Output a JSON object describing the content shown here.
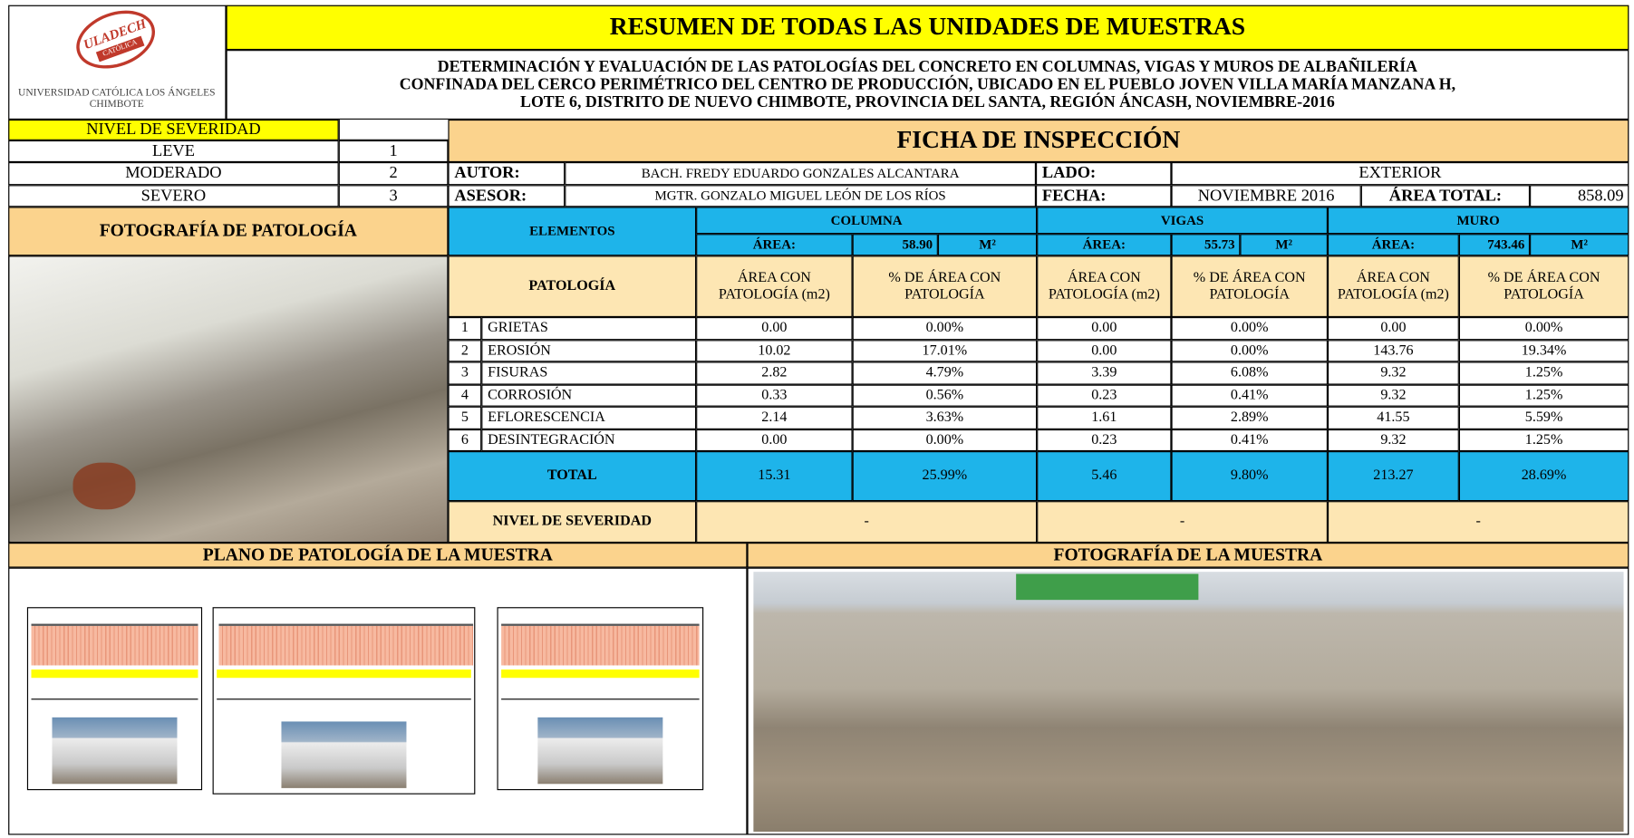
{
  "header": {
    "logo_text": "ULADECH",
    "logo_subtext": "CATÓLICA",
    "university": "UNIVERSIDAD CATÓLICA LOS ÁNGELES CHIMBOTE",
    "title": "RESUMEN DE TODAS LAS UNIDADES DE MUESTRAS",
    "subtitle": [
      "DETERMINACIÓN Y EVALUACIÓN DE LAS PATOLOGÍAS DEL CONCRETO EN COLUMNAS, VIGAS Y MUROS DE ALBAÑILERÍA",
      "CONFINADA DEL CERCO PERIMÉTRICO DEL CENTRO DE PRODUCCIÓN, UBICADO EN EL PUEBLO JOVEN VILLA MARÍA MANZANA H,",
      "LOTE 6, DISTRITO DE NUEVO CHIMBOTE, PROVINCIA DEL SANTA, REGIÓN ÁNCASH, NOVIEMBRE-2016"
    ]
  },
  "severity_legend": {
    "title": "NIVEL DE SEVERIDAD",
    "rows": [
      [
        "LEVE",
        1
      ],
      [
        "MODERADO",
        2
      ],
      [
        "SEVERO",
        3
      ]
    ]
  },
  "form": {
    "title": "FICHA DE INSPECCIÓN",
    "author_label": "AUTOR:",
    "author": "BACH. FREDY EDUARDO GONZALES ALCANTARA",
    "side_label": "LADO:",
    "side": "EXTERIOR",
    "advisor_label": "ASESOR:",
    "advisor": "MGTR. GONZALO MIGUEL LEÓN DE LOS RÍOS",
    "date_label": "FECHA:",
    "date": "NOVIEMBRE 2016",
    "total_area_label": "ÁREA TOTAL:",
    "total_area": "858.09"
  },
  "photo_title": "FOTOGRAFÍA DE PATOLOGÍA",
  "table": {
    "elements_label": "ELEMENTOS",
    "pathology_label": "PATOLOGÍA",
    "groups": [
      {
        "name": "COLUMNA",
        "area_label": "ÁREA:",
        "area": "58.90",
        "unit": "M²",
        "sub_headers": [
          "ÁREA CON PATOLOGÍA (m2)",
          "% DE ÁREA CON PATOLOGÍA"
        ]
      },
      {
        "name": "VIGAS",
        "area_label": "ÁREA:",
        "area": "55.73",
        "unit": "M²",
        "sub_headers": [
          "ÁREA CON PATOLOGÍA (m2)",
          "% DE ÁREA CON PATOLOGÍA"
        ]
      },
      {
        "name": "MURO",
        "area_label": "ÁREA:",
        "area": "743.46",
        "unit": "M²",
        "sub_headers": [
          "ÁREA CON PATOLOGÍA (m2)",
          "% DE ÁREA CON PATOLOGÍA"
        ]
      }
    ],
    "rows": [
      {
        "number": 1,
        "name": "GRIETAS",
        "cells": [
          "0.00",
          "0.00%",
          "0.00",
          "0.00%",
          "0.00",
          "0.00%"
        ]
      },
      {
        "number": 2,
        "name": "EROSIÓN",
        "cells": [
          "10.02",
          "17.01%",
          "0.00",
          "0.00%",
          "143.76",
          "19.34%"
        ]
      },
      {
        "number": 3,
        "name": "FISURAS",
        "cells": [
          "2.82",
          "4.79%",
          "3.39",
          "6.08%",
          "9.32",
          "1.25%"
        ]
      },
      {
        "number": 4,
        "name": "CORROSIÓN",
        "cells": [
          "0.33",
          "0.56%",
          "0.23",
          "0.41%",
          "9.32",
          "1.25%"
        ]
      },
      {
        "number": 5,
        "name": "EFLORESCENCIA",
        "cells": [
          "2.14",
          "3.63%",
          "1.61",
          "2.89%",
          "41.55",
          "5.59%"
        ]
      },
      {
        "number": 6,
        "name": "DESINTEGRACIÓN",
        "cells": [
          "0.00",
          "0.00%",
          "0.23",
          "0.41%",
          "9.32",
          "1.25%"
        ]
      }
    ],
    "total": {
      "label": "TOTAL",
      "cells": [
        "15.31",
        "25.99%",
        "5.46",
        "9.80%",
        "213.27",
        "28.69%"
      ]
    },
    "severity": {
      "label": "NIVEL DE SEVERIDAD",
      "cells": [
        "-",
        "-",
        "-"
      ]
    }
  },
  "bottom": {
    "plan_title": "PLANO DE PATOLOGÍA DE LA MUESTRA",
    "photo_title": "FOTOGRAFÍA DE LA MUESTRA"
  }
}
